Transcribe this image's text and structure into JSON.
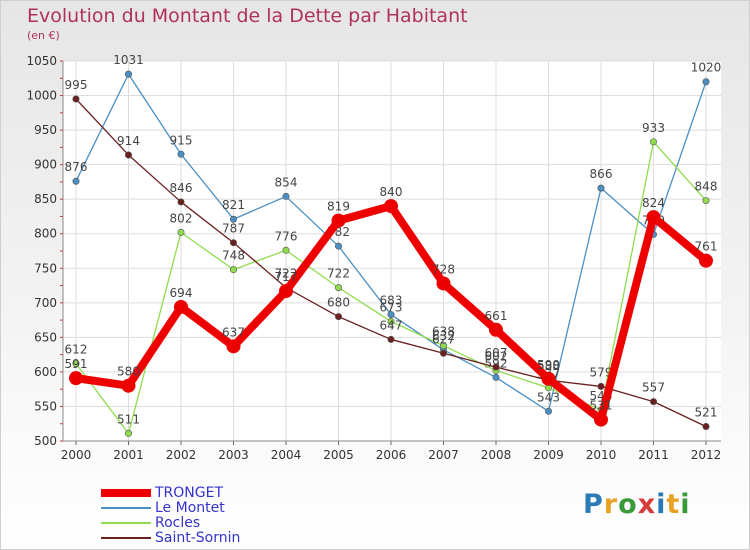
{
  "header": {
    "title": "Evolution du Montant de la Dette par Habitant",
    "subtitle": "(en €)"
  },
  "logo": {
    "text": "Proxiti",
    "letter_colors": [
      "#2a7ab8",
      "#e8a325",
      "#3a9a3a",
      "#d93b3b",
      "#2a7ab8",
      "#e8a325",
      "#3a9a3a"
    ]
  },
  "chart_data": {
    "type": "line",
    "title": "Evolution du Montant de la Dette par Habitant",
    "subtitle": "(en €)",
    "xlabel": "",
    "ylabel": "",
    "x": [
      "2000",
      "2001",
      "2002",
      "2003",
      "2004",
      "2005",
      "2006",
      "2007",
      "2008",
      "2009",
      "2010",
      "2011",
      "2012"
    ],
    "ylim": [
      500,
      1050
    ],
    "yticks": [
      500,
      550,
      600,
      650,
      700,
      750,
      800,
      850,
      900,
      950,
      1000,
      1050
    ],
    "grid": true,
    "legend_position": "bottom-left",
    "series": [
      {
        "name": "TRONGET",
        "color": "#ee0000",
        "values": [
          591,
          580,
          694,
          637,
          717,
          819,
          840,
          728,
          661,
          590,
          531,
          824,
          761
        ]
      },
      {
        "name": "Le Montet",
        "color": "#4a8fc4",
        "values": [
          876,
          1031,
          915,
          821,
          854,
          782,
          683,
          632,
          592,
          543,
          866,
          799,
          1020
        ]
      },
      {
        "name": "Rocles",
        "color": "#8fdc4e",
        "values": [
          612,
          511,
          802,
          748,
          776,
          722,
          673,
          638,
          602,
          577,
          545,
          933,
          848
        ]
      },
      {
        "name": "Saint-Sornin",
        "color": "#6b2020",
        "values": [
          995,
          914,
          846,
          787,
          722,
          680,
          647,
          627,
          607,
          588,
          579,
          557,
          521
        ]
      }
    ]
  }
}
